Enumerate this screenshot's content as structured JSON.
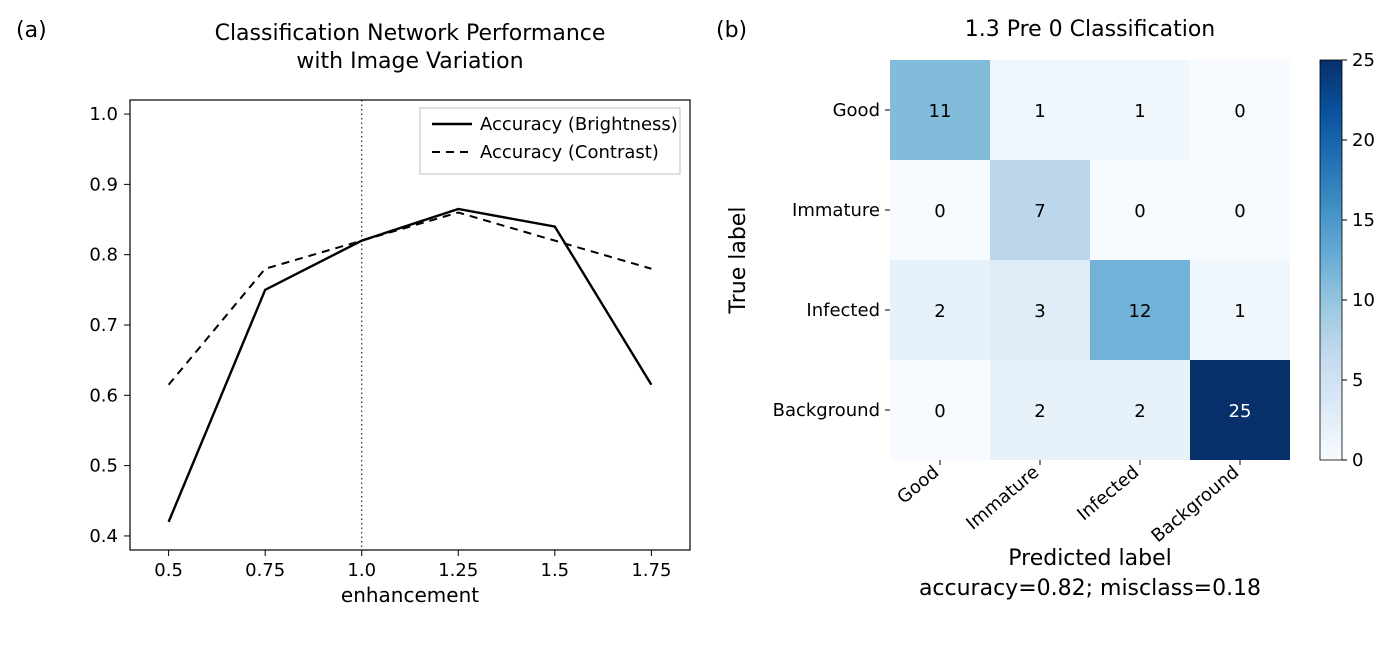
{
  "panelA": {
    "label": "(a)",
    "title_line1": "Classification Network Performance",
    "title_line2": "with Image Variation",
    "title_fontsize": 22,
    "xlabel": "enhancement",
    "label_fontsize": 20,
    "tick_fontsize": 18,
    "xlim": [
      0.4,
      1.85
    ],
    "ylim": [
      0.38,
      1.02
    ],
    "xticks": [
      0.5,
      0.75,
      1.0,
      1.25,
      1.5,
      1.75
    ],
    "xtick_labels": [
      "0.5",
      "0.75",
      "1.0",
      "1.25",
      "1.5",
      "1.75"
    ],
    "yticks": [
      0.4,
      0.5,
      0.6,
      0.7,
      0.8,
      0.9,
      1.0
    ],
    "ytick_labels": [
      "0.4",
      "0.5",
      "0.6",
      "0.7",
      "0.8",
      "0.9",
      "1.0"
    ],
    "ref_line_x": 1.0,
    "series": [
      {
        "name": "Accuracy (Brightness)",
        "style": "solid",
        "color": "#000000",
        "line_width": 2.4,
        "x": [
          0.5,
          0.75,
          1.0,
          1.25,
          1.5,
          1.75
        ],
        "y": [
          0.42,
          0.75,
          0.82,
          0.865,
          0.84,
          0.615
        ]
      },
      {
        "name": "Accuracy (Contrast)",
        "style": "dashed",
        "color": "#000000",
        "line_width": 2.0,
        "dash": "8 6",
        "x": [
          0.5,
          0.75,
          1.0,
          1.25,
          1.5,
          1.75
        ],
        "y": [
          0.615,
          0.78,
          0.82,
          0.86,
          0.82,
          0.78
        ]
      }
    ],
    "legend": {
      "items": [
        "Accuracy (Brightness)",
        "Accuracy (Contrast)"
      ],
      "border_color": "#bfbfbf",
      "background": "#ffffff",
      "fontsize": 18
    },
    "background_color": "#ffffff",
    "axis_color": "#000000"
  },
  "panelB": {
    "label": "(b)",
    "title": "1.3 Pre 0 Classification",
    "title_fontsize": 22,
    "ylabel": "True label",
    "xlabel": "Predicted label",
    "sublabel": "accuracy=0.82; misclass=0.18",
    "label_fontsize": 22,
    "tick_fontsize": 18,
    "categories": [
      "Good",
      "Immature",
      "Infected",
      "Background"
    ],
    "matrix": [
      [
        11,
        1,
        1,
        0
      ],
      [
        0,
        7,
        0,
        0
      ],
      [
        2,
        3,
        12,
        1
      ],
      [
        0,
        2,
        2,
        25
      ]
    ],
    "vmin": 0,
    "vmax": 25,
    "cbar_ticks": [
      0,
      5,
      10,
      15,
      20,
      25
    ],
    "cbar_tick_labels": [
      "0",
      "5",
      "10",
      "15",
      "20",
      "25"
    ],
    "light_text_threshold": 18,
    "colormap_stops": [
      {
        "v": 0.0,
        "c": "#f7fbff"
      },
      {
        "v": 0.125,
        "c": "#deebf7"
      },
      {
        "v": 0.25,
        "c": "#c6dbef"
      },
      {
        "v": 0.375,
        "c": "#9ecae1"
      },
      {
        "v": 0.5,
        "c": "#6baed6"
      },
      {
        "v": 0.625,
        "c": "#4292c6"
      },
      {
        "v": 0.75,
        "c": "#2171b5"
      },
      {
        "v": 0.875,
        "c": "#08519c"
      },
      {
        "v": 1.0,
        "c": "#08306b"
      }
    ],
    "background_color": "#ffffff",
    "axis_color": "#000000"
  }
}
